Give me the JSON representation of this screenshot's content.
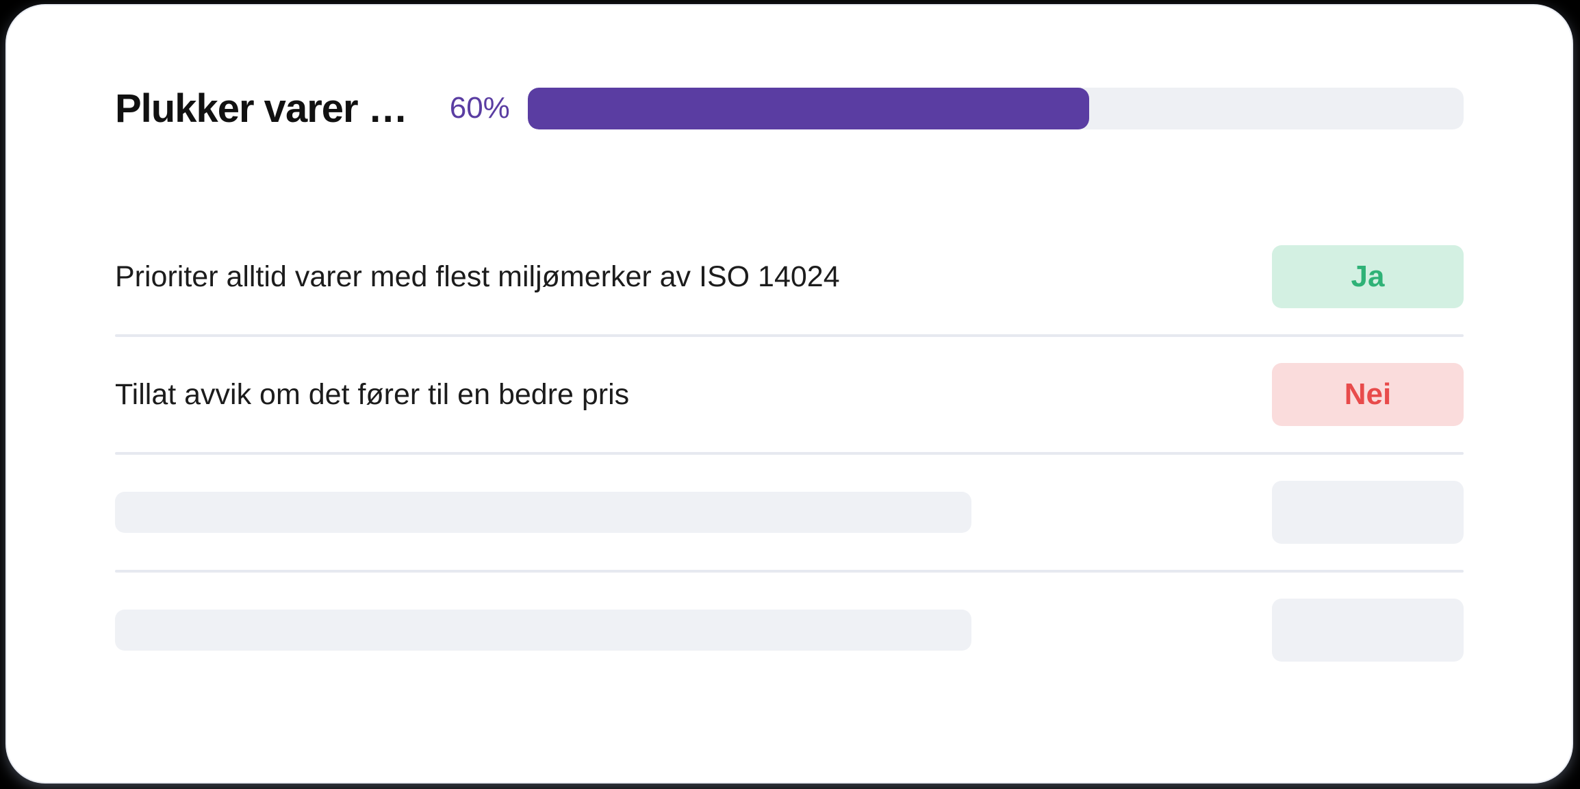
{
  "card": {
    "title": "Plukker varer …",
    "progress": {
      "percent_label": "60%",
      "percent": 60
    }
  },
  "rows": [
    {
      "type": "question",
      "text": "Prioriter alltid varer med flest miljømerker av ISO 14024",
      "answer": "Ja",
      "answer_state": "yes"
    },
    {
      "type": "question",
      "text": "Tillat avvik om det fører til en bedre pris",
      "answer": "Nei",
      "answer_state": "no"
    },
    {
      "type": "skeleton"
    },
    {
      "type": "skeleton"
    }
  ],
  "colors": {
    "accent_purple": "#5a3da2",
    "track_gray": "#eef0f4",
    "divider_gray": "#e6e9f0",
    "skeleton_gray": "#eff1f5",
    "success_green": "#2fb277",
    "success_bg": "#d3f0e2",
    "danger_red": "#e84b4b",
    "danger_bg": "#fadcdc",
    "text_dark": "#1c1c1c"
  }
}
